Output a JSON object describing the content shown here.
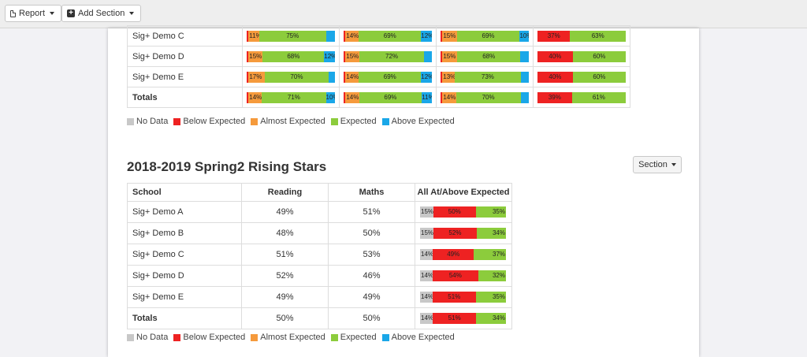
{
  "toolbar": {
    "report_label": "Report",
    "add_section_label": "Add Section"
  },
  "colors": {
    "no_data": "#c8c8c8",
    "below": "#ee2222",
    "almost": "#f59a3c",
    "expected": "#8ccc3c",
    "above": "#1aa7e8"
  },
  "top_table": {
    "rows": [
      {
        "name": "Sig+ Demo C",
        "bars": [
          [
            {
              "k": "below",
              "w": 2,
              "t": ""
            },
            {
              "k": "almost",
              "w": 11,
              "t": "11%"
            },
            {
              "k": "expected",
              "w": 75,
              "t": "75%"
            },
            {
              "k": "above",
              "w": 10,
              "t": ""
            }
          ],
          [
            {
              "k": "below",
              "w": 2,
              "t": ""
            },
            {
              "k": "almost",
              "w": 14,
              "t": "14%"
            },
            {
              "k": "expected",
              "w": 69,
              "t": "69%"
            },
            {
              "k": "above",
              "w": 12,
              "t": "12%"
            }
          ],
          [
            {
              "k": "below",
              "w": 2,
              "t": ""
            },
            {
              "k": "almost",
              "w": 15,
              "t": "15%"
            },
            {
              "k": "expected",
              "w": 69,
              "t": "69%"
            },
            {
              "k": "above",
              "w": 10,
              "t": "10%"
            }
          ],
          [
            {
              "k": "below",
              "w": 37,
              "t": "37%"
            },
            {
              "k": "expected",
              "w": 63,
              "t": "63%"
            }
          ]
        ]
      },
      {
        "name": "Sig+ Demo D",
        "bars": [
          [
            {
              "k": "below",
              "w": 2,
              "t": ""
            },
            {
              "k": "almost",
              "w": 15,
              "t": "15%"
            },
            {
              "k": "expected",
              "w": 68,
              "t": "68%"
            },
            {
              "k": "above",
              "w": 12,
              "t": "12%"
            }
          ],
          [
            {
              "k": "below",
              "w": 2,
              "t": ""
            },
            {
              "k": "almost",
              "w": 15,
              "t": "15%"
            },
            {
              "k": "expected",
              "w": 72,
              "t": "72%"
            },
            {
              "k": "above",
              "w": 9,
              "t": ""
            }
          ],
          [
            {
              "k": "below",
              "w": 2,
              "t": ""
            },
            {
              "k": "almost",
              "w": 15,
              "t": "15%"
            },
            {
              "k": "expected",
              "w": 68,
              "t": "68%"
            },
            {
              "k": "above",
              "w": 9,
              "t": ""
            }
          ],
          [
            {
              "k": "below",
              "w": 40,
              "t": "40%"
            },
            {
              "k": "expected",
              "w": 60,
              "t": "60%"
            }
          ]
        ]
      },
      {
        "name": "Sig+ Demo E",
        "bars": [
          [
            {
              "k": "below",
              "w": 2,
              "t": ""
            },
            {
              "k": "almost",
              "w": 17,
              "t": "17%"
            },
            {
              "k": "expected",
              "w": 70,
              "t": "70%"
            },
            {
              "k": "above",
              "w": 7,
              "t": ""
            }
          ],
          [
            {
              "k": "below",
              "w": 2,
              "t": ""
            },
            {
              "k": "almost",
              "w": 14,
              "t": "14%"
            },
            {
              "k": "expected",
              "w": 69,
              "t": "69%"
            },
            {
              "k": "above",
              "w": 12,
              "t": "12%"
            }
          ],
          [
            {
              "k": "below",
              "w": 2,
              "t": ""
            },
            {
              "k": "almost",
              "w": 13,
              "t": "13%"
            },
            {
              "k": "expected",
              "w": 73,
              "t": "73%"
            },
            {
              "k": "above",
              "w": 9,
              "t": ""
            }
          ],
          [
            {
              "k": "below",
              "w": 40,
              "t": "40%"
            },
            {
              "k": "expected",
              "w": 60,
              "t": "60%"
            }
          ]
        ]
      },
      {
        "name": "Totals",
        "total": true,
        "bars": [
          [
            {
              "k": "below",
              "w": 2,
              "t": ""
            },
            {
              "k": "almost",
              "w": 14,
              "t": "14%"
            },
            {
              "k": "expected",
              "w": 71,
              "t": "71%"
            },
            {
              "k": "above",
              "w": 10,
              "t": "10%"
            }
          ],
          [
            {
              "k": "below",
              "w": 2,
              "t": ""
            },
            {
              "k": "almost",
              "w": 14,
              "t": "14%"
            },
            {
              "k": "expected",
              "w": 69,
              "t": "69%"
            },
            {
              "k": "above",
              "w": 11,
              "t": "11%"
            }
          ],
          [
            {
              "k": "below",
              "w": 2,
              "t": ""
            },
            {
              "k": "almost",
              "w": 14,
              "t": "14%"
            },
            {
              "k": "expected",
              "w": 70,
              "t": "70%"
            },
            {
              "k": "above",
              "w": 9,
              "t": ""
            }
          ],
          [
            {
              "k": "below",
              "w": 39,
              "t": "39%"
            },
            {
              "k": "expected",
              "w": 61,
              "t": "61%"
            }
          ]
        ]
      }
    ]
  },
  "legend": {
    "items": [
      {
        "k": "no_data",
        "label": "No Data"
      },
      {
        "k": "below",
        "label": "Below Expected"
      },
      {
        "k": "almost",
        "label": "Almost Expected"
      },
      {
        "k": "expected",
        "label": "Expected"
      },
      {
        "k": "above",
        "label": "Above Expected"
      }
    ]
  },
  "section": {
    "title": "2018-2019 Spring2 Rising Stars",
    "button_label": "Section",
    "headers": [
      "School",
      "Reading",
      "Maths",
      "All At/Above Expected"
    ],
    "rows": [
      {
        "name": "Sig+ Demo A",
        "reading": "49%",
        "maths": "51%",
        "bar": [
          {
            "k": "nodata",
            "w": 15,
            "t": "15%"
          },
          {
            "k": "below",
            "w": 50,
            "t": "50%"
          },
          {
            "k": "expected",
            "w": 35,
            "t": "35%"
          }
        ]
      },
      {
        "name": "Sig+ Demo B",
        "reading": "48%",
        "maths": "50%",
        "bar": [
          {
            "k": "nodata",
            "w": 15,
            "t": "15%"
          },
          {
            "k": "below",
            "w": 52,
            "t": "52%"
          },
          {
            "k": "expected",
            "w": 34,
            "t": "34%"
          }
        ]
      },
      {
        "name": "Sig+ Demo C",
        "reading": "51%",
        "maths": "53%",
        "bar": [
          {
            "k": "nodata",
            "w": 14,
            "t": "14%"
          },
          {
            "k": "below",
            "w": 49,
            "t": "49%"
          },
          {
            "k": "expected",
            "w": 37,
            "t": "37%"
          }
        ]
      },
      {
        "name": "Sig+ Demo D",
        "reading": "52%",
        "maths": "46%",
        "bar": [
          {
            "k": "nodata",
            "w": 14,
            "t": "14%"
          },
          {
            "k": "below",
            "w": 54,
            "t": "54%"
          },
          {
            "k": "expected",
            "w": 32,
            "t": "32%"
          }
        ]
      },
      {
        "name": "Sig+ Demo E",
        "reading": "49%",
        "maths": "49%",
        "bar": [
          {
            "k": "nodata",
            "w": 14,
            "t": "14%"
          },
          {
            "k": "below",
            "w": 51,
            "t": "51%"
          },
          {
            "k": "expected",
            "w": 35,
            "t": "35%"
          }
        ]
      },
      {
        "name": "Totals",
        "total": true,
        "reading": "50%",
        "maths": "50%",
        "bar": [
          {
            "k": "nodata",
            "w": 14,
            "t": "14%"
          },
          {
            "k": "below",
            "w": 51,
            "t": "51%"
          },
          {
            "k": "expected",
            "w": 34,
            "t": "34%"
          }
        ]
      }
    ]
  }
}
